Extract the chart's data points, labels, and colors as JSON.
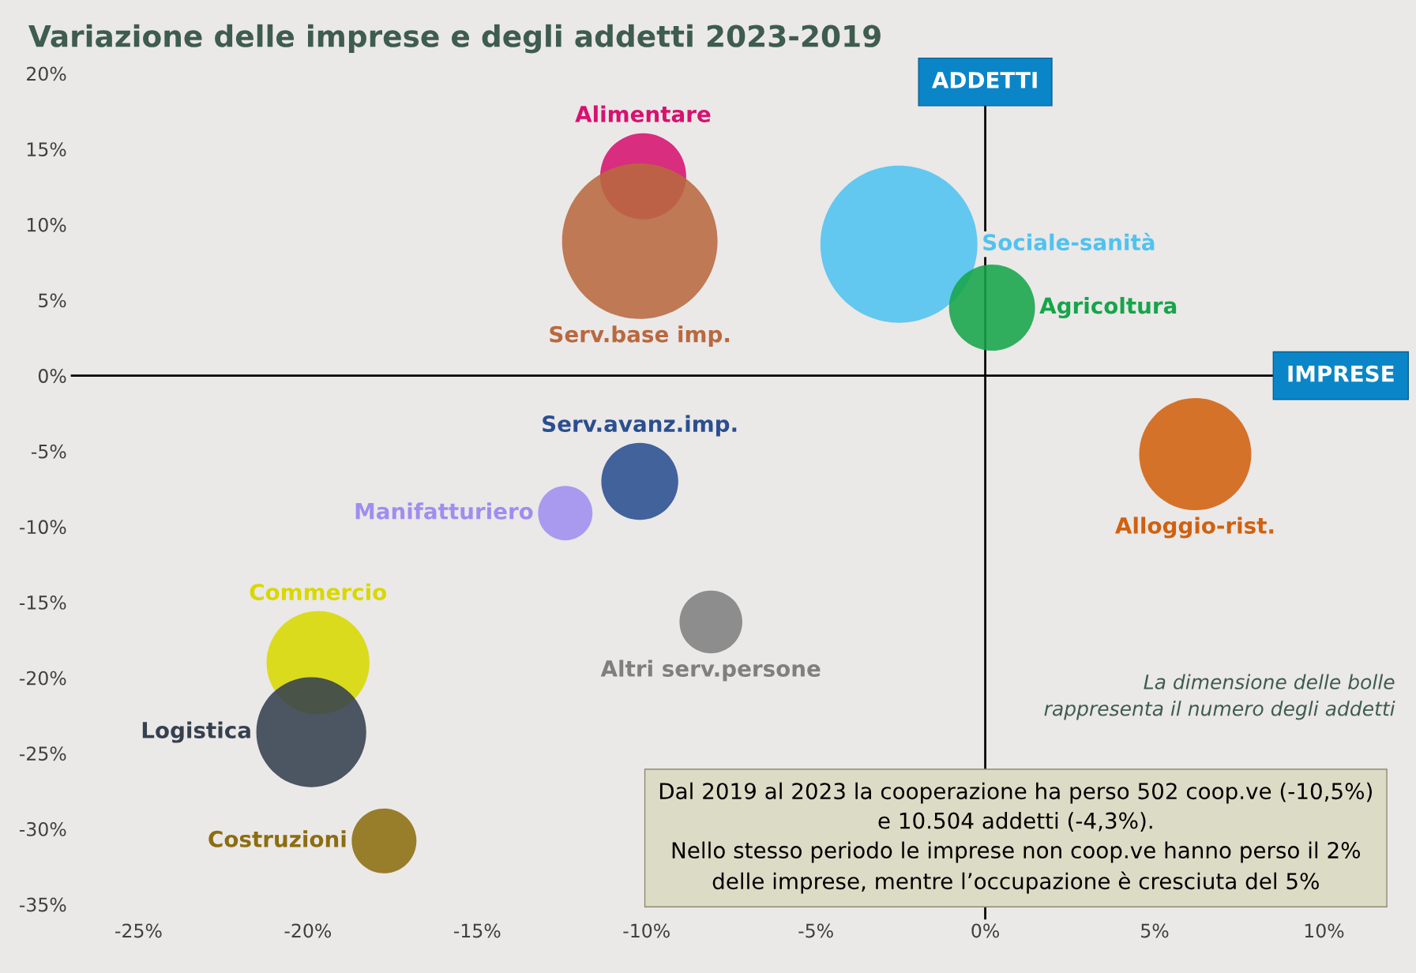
{
  "chart_data": {
    "type": "bubble",
    "title": "Variazione delle imprese e degli addetti 2023-2019",
    "series": [
      {
        "name": "Alimentare",
        "color": "#d6126f",
        "x": [
          -10.1
        ],
        "values": [
          13.2
        ],
        "sizes": [
          0.3
        ]
      },
      {
        "name": "Serv.base imp.",
        "color": "#b8693f",
        "x": [
          -10.2
        ],
        "values": [
          8.9
        ],
        "sizes": [
          0.98
        ]
      },
      {
        "name": "Sociale-sanità",
        "color": "#4fc3ef",
        "x": [
          -2.55
        ],
        "values": [
          8.7
        ],
        "sizes": [
          1
        ]
      },
      {
        "name": "Agricoltura",
        "color": "#16a54a",
        "x": [
          0.2
        ],
        "values": [
          4.5
        ],
        "sizes": [
          0.3
        ]
      },
      {
        "name": "Alloggio-rist.",
        "color": "#d0610f",
        "x": [
          6.2
        ],
        "values": [
          -5.2
        ],
        "sizes": [
          0.51
        ]
      },
      {
        "name": "Serv.avanz.imp.",
        "color": "#2a4f8f",
        "x": [
          -10.2
        ],
        "values": [
          -7.0
        ],
        "sizes": [
          0.24
        ]
      },
      {
        "name": "Manifatturiero",
        "color": "#9f8ef0",
        "x": [
          -12.4
        ],
        "values": [
          -9.1
        ],
        "sizes": [
          0.12
        ]
      },
      {
        "name": "Altri serv.persone",
        "color": "#7f7f7f",
        "x": [
          -8.1
        ],
        "values": [
          -16.3
        ],
        "sizes": [
          0.16
        ]
      },
      {
        "name": "Commercio",
        "color": "#d8d800",
        "x": [
          -19.7
        ],
        "values": [
          -19.0
        ],
        "sizes": [
          0.43
        ]
      },
      {
        "name": "Logistica",
        "color": "#36404e",
        "x": [
          -19.9
        ],
        "values": [
          -23.6
        ],
        "sizes": [
          0.49
        ]
      },
      {
        "name": "Costruzioni",
        "color": "#8c6d10",
        "x": [
          -17.75
        ],
        "values": [
          -30.8
        ],
        "sizes": [
          0.17
        ]
      }
    ],
    "xlim": [
      -27,
      12.3
    ],
    "ylim": [
      -36,
      21
    ],
    "xticks": [
      {
        "value": -25,
        "label": "-25%"
      },
      {
        "value": -20,
        "label": "-20%"
      },
      {
        "value": -15,
        "label": "-15%"
      },
      {
        "value": -10,
        "label": "-10%"
      },
      {
        "value": -5,
        "label": "-5%"
      },
      {
        "value": 0,
        "label": "0%"
      },
      {
        "value": 5,
        "label": "5%"
      },
      {
        "value": 10,
        "label": "10%"
      }
    ],
    "yticks": [
      {
        "value": -35,
        "label": "-35%"
      },
      {
        "value": -30,
        "label": "-30%"
      },
      {
        "value": -25,
        "label": "-25%"
      },
      {
        "value": -20,
        "label": "-20%"
      },
      {
        "value": -15,
        "label": "-15%"
      },
      {
        "value": -10,
        "label": "-10%"
      },
      {
        "value": -5,
        "label": "-5%"
      },
      {
        "value": 0,
        "label": "0%"
      },
      {
        "value": 5,
        "label": "5%"
      },
      {
        "value": 10,
        "label": "10%"
      },
      {
        "value": 15,
        "label": "15%"
      },
      {
        "value": 20,
        "label": "20%"
      }
    ],
    "ref_lines": [
      {
        "axis": "x",
        "value": 0,
        "label": "ADDETTI",
        "color": "#000000"
      },
      {
        "axis": "y",
        "value": 0,
        "label": "IMPRESE",
        "color": "#000000"
      }
    ],
    "annotations": [
      "La dimensione delle bolle\nrappresenta il numero degli addetti",
      "Dal 2019 al 2023 la cooperazione ha perso 502 coop.ve (-10,5%)\ne 10.504 addetti (-4,3%).\nNello stesso periodo le imprese non coop.ve hanno perso il 2%\ndelle imprese, mentre l’occupazione è cresciuta del 5%"
    ],
    "grid": false,
    "legend": false
  }
}
